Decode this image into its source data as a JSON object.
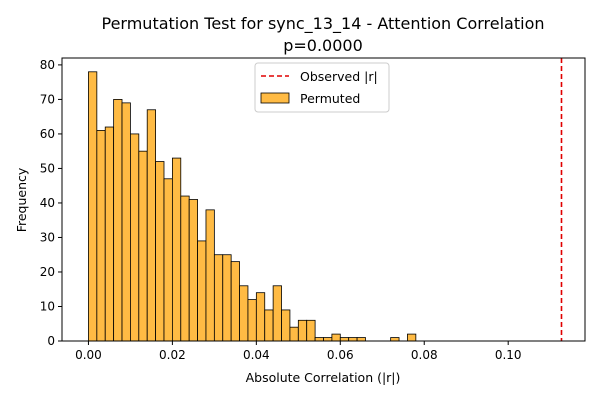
{
  "chart_data": {
    "type": "bar",
    "title": "Permutation Test for sync_13_14 - Attention Correlation",
    "subtitle": "p=0.0000",
    "xlabel": "Absolute Correlation (|r|)",
    "ylabel": "Frequency",
    "xlim": [
      -0.0063,
      0.1183
    ],
    "ylim": [
      0,
      82
    ],
    "xticks": [
      0.0,
      0.02,
      0.04,
      0.06,
      0.08,
      0.1
    ],
    "xtick_labels": [
      "0.00",
      "0.02",
      "0.04",
      "0.06",
      "0.08",
      "0.10"
    ],
    "yticks": [
      0,
      10,
      20,
      30,
      40,
      50,
      60,
      70,
      80
    ],
    "ytick_labels": [
      "0",
      "10",
      "20",
      "30",
      "40",
      "50",
      "60",
      "70",
      "80"
    ],
    "grid": false,
    "legend_position": "upper center",
    "bin_start": 0.0,
    "bin_width": 0.002,
    "series": [
      {
        "name": "Permuted",
        "kind": "histogram",
        "color": "#ffbb44",
        "edgecolor": "#000000",
        "values": [
          78,
          61,
          62,
          70,
          69,
          60,
          55,
          67,
          52,
          47,
          53,
          42,
          41,
          29,
          38,
          25,
          25,
          23,
          16,
          12,
          14,
          9,
          16,
          9,
          4,
          6,
          6,
          1,
          1,
          2,
          1,
          1,
          1,
          0,
          0,
          0,
          1,
          0,
          2
        ]
      },
      {
        "name": "Observed |r|",
        "kind": "vline",
        "x": 0.1127,
        "color": "#e00000",
        "linestyle": "dashed"
      }
    ]
  }
}
